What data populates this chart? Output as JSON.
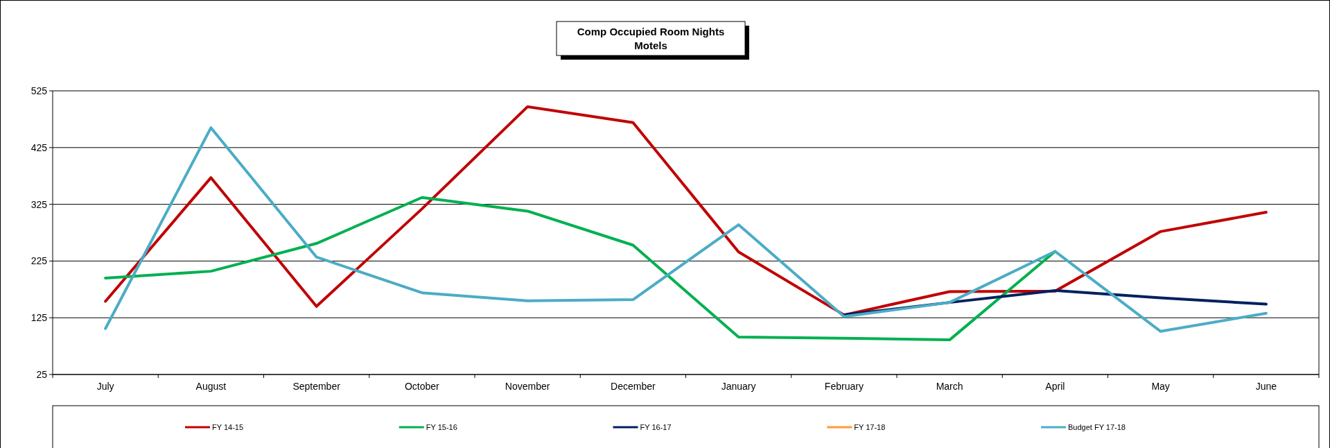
{
  "chart_data": {
    "type": "line",
    "title": "Comp Occupied Room Nights",
    "subtitle": "Motels",
    "categories": [
      "July",
      "August",
      "September",
      "October",
      "November",
      "December",
      "January",
      "February",
      "March",
      "April",
      "May",
      "June"
    ],
    "series": [
      {
        "name": "FY 14-15",
        "color": "#c00000",
        "values": [
          154,
          372,
          145,
          317,
          497,
          469,
          241,
          130,
          171,
          172,
          277,
          311
        ]
      },
      {
        "name": "FY 15-16",
        "color": "#00b050",
        "values": [
          195,
          207,
          256,
          337,
          313,
          253,
          91,
          89,
          86,
          242,
          null,
          null
        ]
      },
      {
        "name": "FY 16-17",
        "color": "#002060",
        "values": [
          null,
          null,
          null,
          null,
          null,
          null,
          null,
          130,
          152,
          173,
          160,
          149
        ]
      },
      {
        "name": "FY 17-18",
        "color": "#ff9933",
        "values": [
          null,
          null,
          null,
          null,
          null,
          null,
          null,
          null,
          null,
          null,
          null,
          null
        ]
      },
      {
        "name": "Budget FY 17-18",
        "color": "#4bacc6",
        "values": [
          106,
          460,
          232,
          169,
          155,
          157,
          289,
          127,
          152,
          242,
          101,
          133
        ]
      }
    ],
    "ylim": [
      25,
      525
    ],
    "yticks": [
      25,
      125,
      225,
      325,
      425,
      525
    ],
    "grid": "y",
    "legend": "bottom",
    "marker": "none",
    "line_style": "solid"
  }
}
